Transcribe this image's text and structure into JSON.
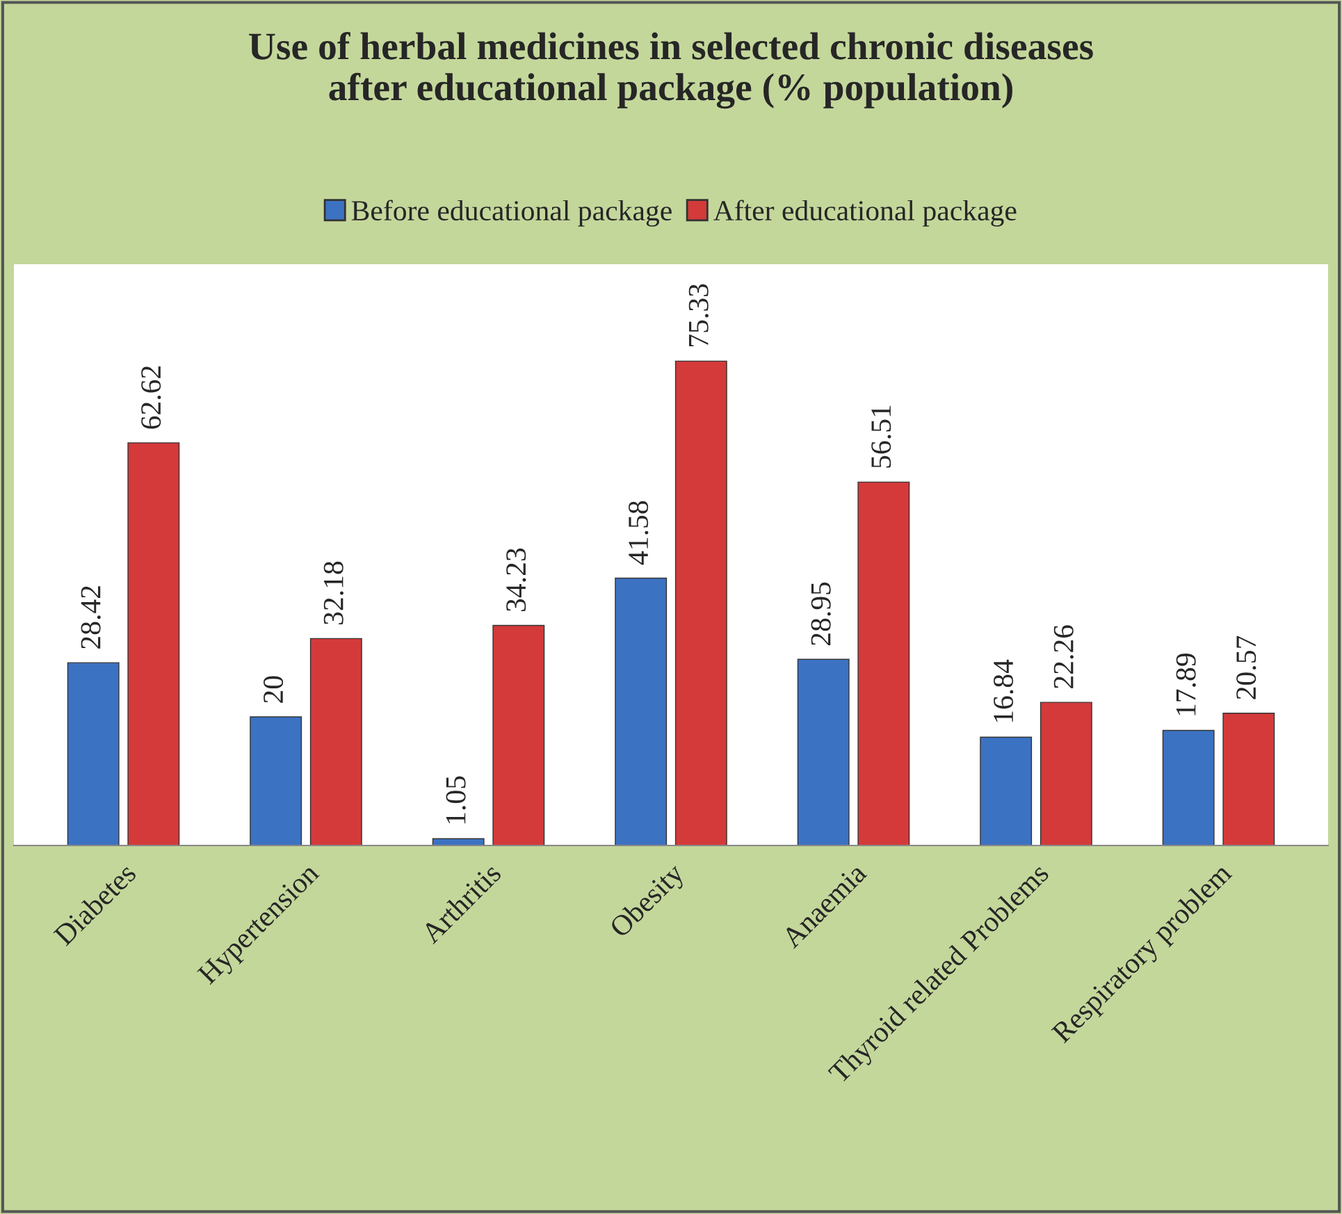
{
  "chart_data": {
    "type": "bar",
    "title": "Use of herbal medicines in selected chronic diseases\nafter educational package (% population)",
    "categories": [
      "Diabetes",
      "Hypertension",
      "Arthritis",
      "Obesity",
      "Anaemia",
      "Thyroid related Problems",
      "Respiratory problem"
    ],
    "series": [
      {
        "name": "Before educational package",
        "color": "#3c72c2",
        "values": [
          28.42,
          20,
          1.05,
          41.58,
          28.95,
          16.84,
          17.89
        ]
      },
      {
        "name": "After educational package",
        "color": "#d43a3a",
        "values": [
          62.62,
          32.18,
          34.23,
          75.33,
          56.51,
          22.26,
          20.57
        ]
      }
    ],
    "data_labels": true,
    "legend": "top",
    "grid": false
  }
}
